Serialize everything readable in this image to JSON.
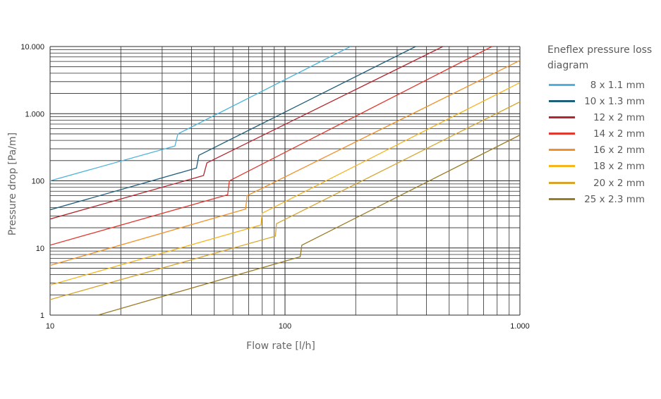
{
  "chart_data": {
    "type": "line",
    "xlabel": "Flow rate [l/h]",
    "ylabel": "Pressure drop [Pa/m]",
    "x_scale": "log",
    "y_scale": "log",
    "xlim": [
      10,
      1000
    ],
    "ylim": [
      1,
      10000
    ],
    "grid": true,
    "x_ticks": [
      {
        "value": 10,
        "label": "10"
      },
      {
        "value": 100,
        "label": "100"
      },
      {
        "value": 1000,
        "label": "1.000"
      }
    ],
    "y_ticks": [
      {
        "value": 1,
        "label": "1"
      },
      {
        "value": 10,
        "label": "10"
      },
      {
        "value": 100,
        "label": "100"
      },
      {
        "value": 1000,
        "label": "1.000"
      },
      {
        "value": 10000,
        "label": "10.000"
      }
    ],
    "legend_title": "Eneflex pressure loss diagram",
    "legend_position": "right",
    "series": [
      {
        "name": "8 x 1.1 mm",
        "color": "#4db3dd",
        "points": [
          [
            10,
            100
          ],
          [
            34,
            330
          ],
          [
            35,
            500
          ],
          [
            190,
            10000
          ]
        ]
      },
      {
        "name": "10 x 1.3 mm",
        "color": "#1f5f7a",
        "points": [
          [
            10,
            37
          ],
          [
            42,
            155
          ],
          [
            43,
            240
          ],
          [
            360,
            10000
          ]
        ]
      },
      {
        "name": "12 x 2 mm",
        "color": "#b3262d",
        "points": [
          [
            10,
            27
          ],
          [
            45,
            120
          ],
          [
            46.5,
            185
          ],
          [
            470,
            10000
          ]
        ]
      },
      {
        "name": "14 x 2 mm",
        "color": "#e03a2f",
        "points": [
          [
            10,
            11
          ],
          [
            57,
            62
          ],
          [
            58,
            100
          ],
          [
            760,
            10000
          ]
        ]
      },
      {
        "name": "16 x 2 mm",
        "color": "#f0922b",
        "points": [
          [
            10,
            5.5
          ],
          [
            68,
            38
          ],
          [
            69,
            60
          ],
          [
            1000,
            6200
          ]
        ]
      },
      {
        "name": "18 x 2 mm",
        "color": "#f6b520",
        "points": [
          [
            10,
            2.8
          ],
          [
            79,
            22
          ],
          [
            80,
            33
          ],
          [
            1000,
            2900
          ]
        ]
      },
      {
        "name": "20 x 2 mm",
        "color": "#d7a52e",
        "points": [
          [
            10,
            1.7
          ],
          [
            91,
            15
          ],
          [
            92,
            23
          ],
          [
            1000,
            1500
          ]
        ]
      },
      {
        "name": "25 x 2.3 mm",
        "color": "#9a7d26",
        "points": [
          [
            16,
            1
          ],
          [
            116,
            7.4
          ],
          [
            118,
            11
          ],
          [
            1000,
            480
          ]
        ]
      }
    ]
  }
}
